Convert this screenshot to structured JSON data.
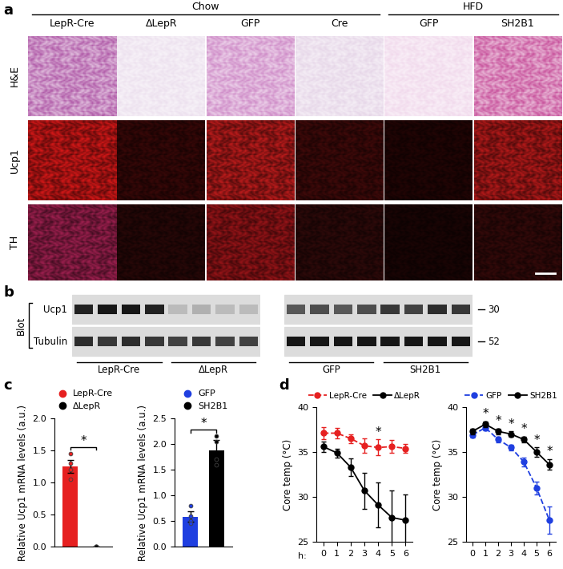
{
  "panel_labels": [
    "a",
    "b",
    "c",
    "d"
  ],
  "panel_a": {
    "groups": [
      {
        "label": "Chow",
        "columns": [
          "LepR-Cre",
          "ΔLepR",
          "GFP",
          "Cre"
        ]
      },
      {
        "label": "HFD",
        "columns": [
          "GFP",
          "SH2B1"
        ]
      }
    ],
    "rows": [
      "H&E",
      "Ucp1",
      "TH"
    ]
  },
  "panel_b": {
    "blot_label": "Blot",
    "rows": [
      "Ucp1",
      "Tubulin"
    ],
    "markers": [
      "30",
      "52"
    ],
    "blots": [
      {
        "groups": [
          "LepR-Cre",
          "ΔLepR"
        ],
        "bands": {
          "Ucp1": [
            0.85,
            0.9,
            0.9,
            0.85,
            0.15,
            0.2,
            0.15,
            0.15
          ],
          "Tubulin": [
            0.8,
            0.75,
            0.8,
            0.75,
            0.7,
            0.75,
            0.7,
            0.7
          ]
        }
      },
      {
        "groups": [
          "GFP",
          "SH2B1"
        ],
        "bands": {
          "Ucp1": [
            0.6,
            0.65,
            0.6,
            0.65,
            0.75,
            0.7,
            0.8,
            0.75
          ],
          "Tubulin": [
            0.9,
            0.9,
            0.9,
            0.9,
            0.9,
            0.9,
            0.9,
            0.9
          ]
        }
      }
    ]
  },
  "chart_data": [
    {
      "type": "bar",
      "ylabel": "Relative Ucp1 mRNA levels (a.u.)",
      "categories": [
        "LepR-Cre",
        "ΔLepR"
      ],
      "values": [
        1.25,
        0.0
      ],
      "errors": [
        0.1,
        0.0
      ],
      "points": [
        [
          1.45,
          1.3,
          1.2,
          1.05
        ],
        [
          0.0,
          0.0,
          0.0,
          0.0
        ]
      ],
      "colors": [
        "#e62020",
        "#000000"
      ],
      "ylim": [
        0,
        2.0
      ],
      "yticks": [
        {
          "value": 0,
          "label": "0.0"
        },
        {
          "value": 0.5,
          "label": "0.5"
        },
        {
          "value": 1.0,
          "label": "1.0"
        },
        {
          "value": 1.5,
          "label": "1.5"
        },
        {
          "value": 2.0,
          "label": "2.0"
        }
      ],
      "legend": "top",
      "tick_labels": "y",
      "annotations": [
        {
          "text": "*"
        }
      ]
    },
    {
      "type": "bar",
      "ylabel": "Relative Ucp1 mRNA levels (a.u.)",
      "categories": [
        "GFP",
        "SH2B1"
      ],
      "values": [
        0.58,
        1.88
      ],
      "errors": [
        0.1,
        0.2
      ],
      "points": [
        [
          0.8,
          0.6,
          0.5,
          0.45
        ],
        [
          2.15,
          2.05,
          1.7,
          1.6
        ]
      ],
      "colors": [
        "#1f3fe0",
        "#000000"
      ],
      "ylim": [
        0,
        2.5
      ],
      "yticks": [
        {
          "value": 0,
          "label": "0.0"
        },
        {
          "value": 0.5,
          "label": "0.5"
        },
        {
          "value": 1.0,
          "label": "1.0"
        },
        {
          "value": 1.5,
          "label": "1.5"
        },
        {
          "value": 2.0,
          "label": "2.0"
        },
        {
          "value": 2.5,
          "label": "2.5"
        }
      ],
      "legend": "top",
      "tick_labels": "y",
      "annotations": [
        {
          "text": "*"
        }
      ]
    },
    {
      "type": "line",
      "xlabel": "h:",
      "ylabel": "Core temp (°C)",
      "x": [
        0,
        1,
        2,
        3,
        4,
        5,
        6
      ],
      "xlim": [
        -0.5,
        6.5
      ],
      "xticks": [
        0,
        1,
        2,
        3,
        4,
        5,
        6
      ],
      "ylim": [
        25,
        40
      ],
      "yticks": [
        25,
        30,
        35,
        40
      ],
      "series": [
        {
          "name": "LepR-Cre",
          "color": "#e62020",
          "line_style": "dashed",
          "marker": "circle",
          "values": [
            37.1,
            37.1,
            36.5,
            35.7,
            35.5,
            35.6,
            35.4
          ],
          "errors": [
            0.7,
            0.6,
            0.5,
            0.8,
            0.9,
            0.7,
            0.5
          ]
        },
        {
          "name": "ΔLepR",
          "color": "#000000",
          "line_style": "solid",
          "marker": "circle",
          "values": [
            35.6,
            34.9,
            33.3,
            30.7,
            29.1,
            27.7,
            27.4
          ],
          "errors": [
            0.6,
            0.5,
            1.0,
            2.0,
            2.5,
            3.0,
            2.9
          ]
        }
      ],
      "legend": "top",
      "annotations": [
        {
          "text": "*",
          "x": 4
        }
      ]
    },
    {
      "type": "line",
      "ylabel": "Core temp (°C)",
      "x": [
        0,
        1,
        2,
        3,
        4,
        5,
        6
      ],
      "xlim": [
        -0.5,
        6.5
      ],
      "xticks": [
        0,
        1,
        2,
        3,
        4,
        5,
        6
      ],
      "ylim": [
        25,
        40
      ],
      "yticks": [
        25,
        30,
        35,
        40
      ],
      "series": [
        {
          "name": "GFP",
          "color": "#1f3fe0",
          "line_style": "dashed",
          "marker": "circle",
          "values": [
            36.9,
            37.7,
            36.4,
            35.5,
            33.9,
            31.0,
            27.4
          ],
          "errors": [
            0.3,
            0.3,
            0.3,
            0.3,
            0.5,
            0.7,
            1.5
          ]
        },
        {
          "name": "SH2B1",
          "color": "#000000",
          "line_style": "solid",
          "marker": "circle",
          "values": [
            37.3,
            38.1,
            37.3,
            37.0,
            36.4,
            35.0,
            33.6
          ],
          "errors": [
            0.3,
            0.3,
            0.3,
            0.3,
            0.3,
            0.5,
            0.6
          ]
        }
      ],
      "legend": "top",
      "annotations": [
        {
          "text": "*",
          "x": 1
        },
        {
          "text": "*",
          "x": 2
        },
        {
          "text": "*",
          "x": 3
        },
        {
          "text": "*",
          "x": 4
        },
        {
          "text": "*",
          "x": 5
        },
        {
          "text": "*",
          "x": 6
        }
      ]
    }
  ]
}
